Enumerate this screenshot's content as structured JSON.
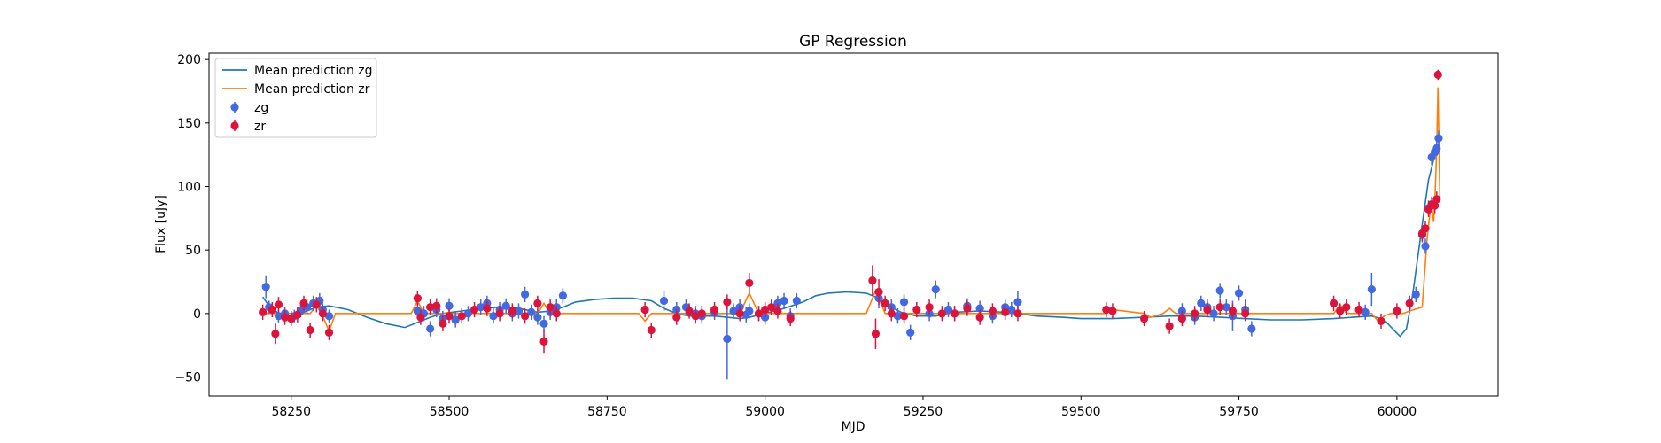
{
  "chart_data": {
    "type": "scatter",
    "title": "GP Regression",
    "xlabel": "MJD",
    "ylabel": "Flux [uJy]",
    "xlim": [
      58120,
      60160
    ],
    "ylim": [
      -65,
      205
    ],
    "xticks": [
      58250,
      58500,
      58750,
      59000,
      59250,
      59500,
      59750,
      60000
    ],
    "yticks": [
      -50,
      0,
      50,
      100,
      150,
      200
    ],
    "legend_position": "upper left",
    "grid": false,
    "lines": [
      {
        "name": "Mean prediction zg",
        "color": "#1f77b4",
        "x": [
          58205,
          58215,
          58230,
          58250,
          58270,
          58290,
          58310,
          58340,
          58370,
          58400,
          58430,
          58450,
          58470,
          58490,
          58520,
          58550,
          58580,
          58610,
          58640,
          58660,
          58680,
          58700,
          58730,
          58760,
          58790,
          58820,
          58840,
          58860,
          58880,
          58900,
          58920,
          58940,
          58960,
          58975,
          59000,
          59030,
          59060,
          59080,
          59100,
          59130,
          59160,
          59180,
          59200,
          59215,
          59240,
          59270,
          59300,
          59340,
          59380,
          59400,
          59430,
          59470,
          59500,
          59550,
          59600,
          59640,
          59680,
          59720,
          59760,
          59800,
          59850,
          59900,
          59930,
          59960,
          59980,
          59995,
          60005,
          60015,
          60025,
          60040,
          60050,
          60060,
          60068
        ],
        "y": [
          13,
          6,
          0,
          -2,
          1,
          5,
          6,
          3,
          -3,
          -8,
          -11,
          -7,
          -3,
          0,
          2,
          4,
          5,
          4,
          1,
          2,
          5,
          9,
          11,
          12,
          12,
          10,
          4,
          0,
          -2,
          -2,
          -2,
          -3,
          -4,
          -3,
          0,
          4,
          9,
          14,
          16,
          17,
          16,
          12,
          5,
          1,
          -2,
          -2,
          1,
          2,
          1,
          0,
          -2,
          -3,
          -4,
          -4,
          -3,
          -2,
          -2,
          -3,
          -4,
          -5,
          -5,
          -4,
          -3,
          -2,
          -5,
          -13,
          -18,
          -12,
          15,
          70,
          105,
          125,
          136
        ]
      },
      {
        "name": "Mean prediction zr",
        "color": "#ff7f0e",
        "x": [
          58200,
          58260,
          58280,
          58290,
          58300,
          58310,
          58320,
          58440,
          58450,
          58460,
          58640,
          58650,
          58660,
          58800,
          58810,
          58820,
          58960,
          58975,
          58990,
          59160,
          59175,
          59190,
          59320,
          59540,
          59550,
          59600,
          59610,
          59630,
          59640,
          59650,
          59660,
          59900,
          59910,
          59920,
          59960,
          59970,
          59980,
          59990,
          60010,
          60020,
          60040,
          60048,
          60052,
          60055,
          60058,
          60060,
          60063,
          60065,
          60068
        ],
        "y": [
          0,
          0,
          0,
          6,
          -2,
          -14,
          0,
          0,
          10,
          0,
          0,
          8,
          0,
          0,
          -6,
          0,
          0,
          16,
          0,
          0,
          18,
          0,
          0,
          0,
          3,
          0,
          -3,
          0,
          4,
          0,
          0,
          0,
          7,
          0,
          0,
          -6,
          -2,
          0,
          0,
          2,
          5,
          60,
          78,
          85,
          72,
          88,
          130,
          178,
          90
        ]
      }
    ],
    "series": [
      {
        "name": "zg",
        "color": "#4169e1",
        "x": [
          58210,
          58215,
          58230,
          58240,
          58255,
          58265,
          58275,
          58285,
          58295,
          58300,
          58310,
          58450,
          58460,
          58470,
          58480,
          58490,
          58500,
          58510,
          58530,
          58550,
          58560,
          58570,
          58580,
          58590,
          58600,
          58610,
          58620,
          58630,
          58640,
          58650,
          58660,
          58670,
          58680,
          58840,
          58860,
          58875,
          58890,
          58900,
          58920,
          58940,
          58950,
          58960,
          58970,
          58975,
          58990,
          59000,
          59020,
          59030,
          59040,
          59050,
          59180,
          59200,
          59210,
          59220,
          59230,
          59260,
          59270,
          59290,
          59300,
          59320,
          59340,
          59360,
          59380,
          59390,
          59400,
          59660,
          59680,
          59690,
          59700,
          59710,
          59720,
          59730,
          59740,
          59750,
          59760,
          59770,
          59950,
          59960,
          60030,
          60040,
          60045,
          60050,
          60055,
          60060,
          60063,
          60066
        ],
        "y": [
          21,
          5,
          -2,
          0,
          -2,
          2,
          5,
          8,
          10,
          3,
          -2,
          2,
          0,
          -12,
          3,
          -4,
          6,
          -5,
          0,
          5,
          8,
          -2,
          3,
          6,
          0,
          2,
          15,
          1,
          -3,
          -8,
          1,
          5,
          14,
          10,
          3,
          5,
          0,
          -2,
          1,
          -20,
          2,
          5,
          -1,
          2,
          0,
          -3,
          8,
          10,
          -2,
          10,
          12,
          5,
          -2,
          9,
          -15,
          0,
          19,
          3,
          0,
          6,
          4,
          -2,
          5,
          3,
          9,
          2,
          -3,
          8,
          5,
          0,
          18,
          5,
          -2,
          16,
          3,
          -12,
          1,
          19,
          15,
          62,
          53,
          83,
          123,
          127,
          130,
          138
        ],
        "yerr": [
          9,
          5,
          5,
          5,
          5,
          5,
          6,
          6,
          6,
          5,
          5,
          6,
          6,
          6,
          6,
          6,
          6,
          6,
          6,
          6,
          6,
          6,
          6,
          6,
          6,
          6,
          6,
          6,
          6,
          6,
          6,
          6,
          6,
          8,
          6,
          6,
          6,
          6,
          6,
          32,
          6,
          6,
          6,
          6,
          6,
          6,
          6,
          6,
          6,
          6,
          8,
          6,
          6,
          6,
          6,
          6,
          7,
          6,
          6,
          6,
          6,
          6,
          6,
          6,
          9,
          6,
          6,
          6,
          6,
          6,
          6,
          6,
          12,
          6,
          8,
          6,
          6,
          13,
          6,
          6,
          6,
          6,
          6,
          6,
          6,
          6
        ]
      },
      {
        "name": "zr",
        "color": "#dc143c",
        "x": [
          58205,
          58220,
          58225,
          58230,
          58240,
          58250,
          58260,
          58270,
          58280,
          58290,
          58300,
          58310,
          58450,
          58455,
          58470,
          58480,
          58490,
          58500,
          58520,
          58540,
          58560,
          58580,
          58600,
          58620,
          58640,
          58650,
          58660,
          58670,
          58810,
          58820,
          58860,
          58880,
          58890,
          58900,
          58920,
          58940,
          58960,
          58975,
          58990,
          59000,
          59010,
          59020,
          59040,
          59170,
          59175,
          59180,
          59190,
          59200,
          59220,
          59240,
          59260,
          59280,
          59300,
          59320,
          59340,
          59360,
          59380,
          59400,
          59540,
          59550,
          59600,
          59640,
          59660,
          59680,
          59700,
          59720,
          59740,
          59760,
          59900,
          59910,
          59920,
          59940,
          59975,
          60000,
          60020,
          60040,
          60045,
          60050,
          60055,
          60060,
          60063,
          60065
        ],
        "y": [
          1,
          3,
          -16,
          7,
          -3,
          -4,
          -1,
          8,
          -13,
          7,
          0,
          -15,
          12,
          -3,
          5,
          6,
          -8,
          -2,
          -2,
          3,
          4,
          0,
          2,
          -2,
          8,
          -22,
          5,
          0,
          3,
          -13,
          -3,
          2,
          -2,
          0,
          3,
          9,
          0,
          24,
          0,
          3,
          5,
          2,
          -4,
          26,
          -16,
          17,
          8,
          0,
          -2,
          3,
          5,
          0,
          0,
          4,
          -3,
          2,
          1,
          0,
          3,
          2,
          -4,
          -10,
          -4,
          0,
          3,
          5,
          2,
          0,
          8,
          2,
          5,
          3,
          -6,
          2,
          8,
          63,
          67,
          82,
          86,
          85,
          90,
          188
        ],
        "yerr": [
          6,
          6,
          8,
          6,
          6,
          6,
          6,
          6,
          6,
          6,
          6,
          6,
          6,
          6,
          6,
          6,
          6,
          6,
          6,
          6,
          6,
          6,
          6,
          6,
          6,
          9,
          6,
          6,
          6,
          6,
          6,
          6,
          6,
          6,
          6,
          6,
          6,
          8,
          6,
          6,
          6,
          6,
          6,
          12,
          12,
          10,
          6,
          6,
          6,
          6,
          6,
          6,
          6,
          6,
          6,
          6,
          6,
          6,
          6,
          6,
          6,
          6,
          6,
          6,
          6,
          6,
          6,
          6,
          6,
          6,
          6,
          6,
          6,
          6,
          6,
          6,
          6,
          6,
          6,
          6,
          6,
          4
        ]
      }
    ]
  }
}
